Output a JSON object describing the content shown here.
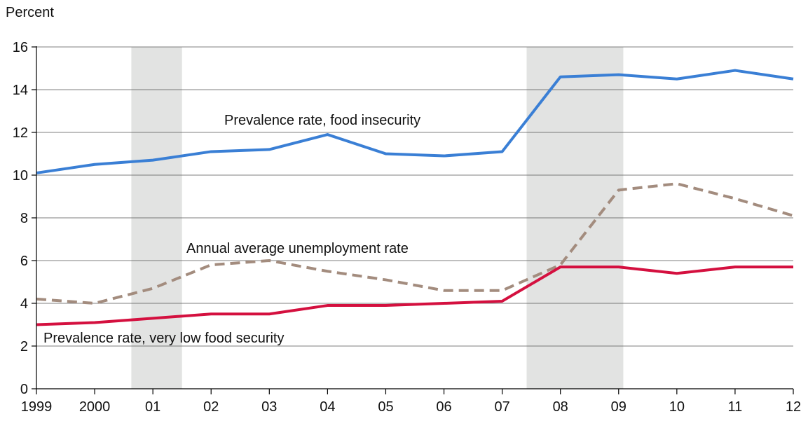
{
  "chart_data": {
    "type": "line",
    "ylabel": "Percent",
    "ylim": [
      0,
      16
    ],
    "yticks": [
      0,
      2,
      4,
      6,
      8,
      10,
      12,
      14,
      16
    ],
    "x": [
      1999,
      2000,
      2001,
      2002,
      2003,
      2004,
      2005,
      2006,
      2007,
      2008,
      2009,
      2010,
      2011,
      2012
    ],
    "xtick_labels": [
      "1999",
      "2000",
      "01",
      "02",
      "03",
      "04",
      "05",
      "06",
      "07",
      "08",
      "09",
      "10",
      "11",
      "12"
    ],
    "grid": true,
    "shaded_periods": [
      {
        "start": 2000.63,
        "end": 2001.5
      },
      {
        "start": 2007.42,
        "end": 2009.08
      }
    ],
    "series": [
      {
        "name": "Prevalence rate, food insecurity",
        "color": "#3a7fd5",
        "style": "solid",
        "values": [
          10.1,
          10.5,
          10.7,
          11.1,
          11.2,
          11.9,
          11.0,
          10.9,
          11.1,
          14.6,
          14.7,
          14.5,
          14.9,
          14.5
        ]
      },
      {
        "name": "Annual average unemployment rate",
        "color": "#a38c7e",
        "style": "dashed",
        "values": [
          4.2,
          4.0,
          4.7,
          5.8,
          6.0,
          5.5,
          5.1,
          4.6,
          4.6,
          5.8,
          9.3,
          9.6,
          8.9,
          8.1
        ]
      },
      {
        "name": "Prevalence rate, very low food security",
        "color": "#d4103f",
        "style": "solid",
        "values": [
          3.0,
          3.1,
          3.3,
          3.5,
          3.5,
          3.9,
          3.9,
          4.0,
          4.1,
          5.7,
          5.7,
          5.4,
          5.7,
          5.7
        ]
      }
    ]
  }
}
